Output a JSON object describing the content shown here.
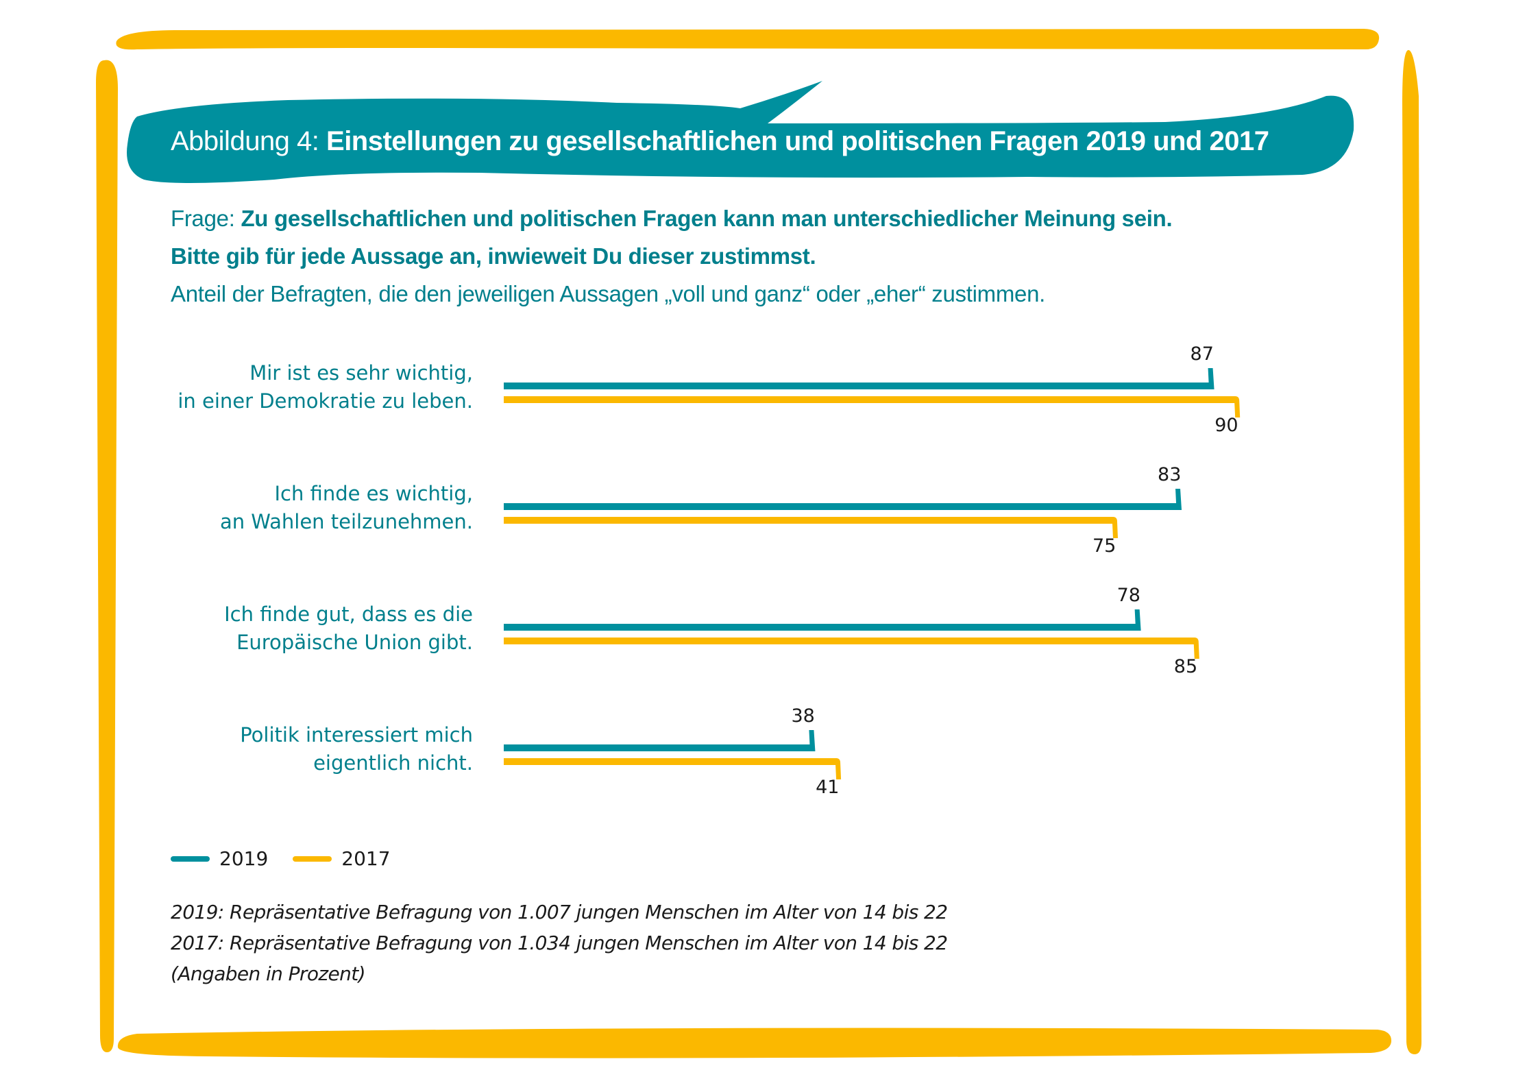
{
  "title": {
    "prefix": "Abbildung 4: ",
    "main": "Einstellungen zu gesellschaftlichen und politischen Fragen 2019 und 2017"
  },
  "question": {
    "label": "Frage: ",
    "line1_bold": "Zu gesellschaftlichen und politischen Fragen kann man unterschiedlicher Meinung sein.",
    "line2_bold": "Bitte gib für jede Aussage an, inwieweit Du dieser zustimmst.",
    "line3": "Anteil der Befragten, die den jeweiligen Aussagen „voll und ganz“ oder „eher“ zustimmen."
  },
  "colors": {
    "series_2019": "#00909E",
    "series_2017": "#FBB800",
    "text_teal": "#007F8C",
    "frame": "#FBB800"
  },
  "chart_data": {
    "type": "bar",
    "orientation": "horizontal",
    "title": "Einstellungen zu gesellschaftlichen und politischen Fragen 2019 und 2017",
    "xlabel": "",
    "ylabel": "",
    "unit": "Prozent",
    "xlim": [
      0,
      100
    ],
    "grid": false,
    "legend_position": "bottom-left",
    "categories": [
      [
        "Mir ist es sehr wichtig,",
        "in einer Demokratie zu leben."
      ],
      [
        "Ich finde es wichtig,",
        "an Wahlen teilzunehmen."
      ],
      [
        "Ich finde gut, dass es die",
        "Europäische Union gibt."
      ],
      [
        "Politik interessiert mich",
        "eigentlich nicht."
      ]
    ],
    "series": [
      {
        "name": "2019",
        "values": [
          87,
          83,
          78,
          38
        ]
      },
      {
        "name": "2017",
        "values": [
          90,
          75,
          85,
          41
        ]
      }
    ]
  },
  "legend": [
    {
      "label": "2019"
    },
    {
      "label": "2017"
    }
  ],
  "footnotes": [
    "2019: Repräsentative Befragung von 1.007 jungen Menschen im Alter von 14 bis 22",
    "2017: Repräsentative Befragung von 1.034 jungen Menschen im Alter von 14 bis 22",
    "(Angaben in Prozent)"
  ]
}
